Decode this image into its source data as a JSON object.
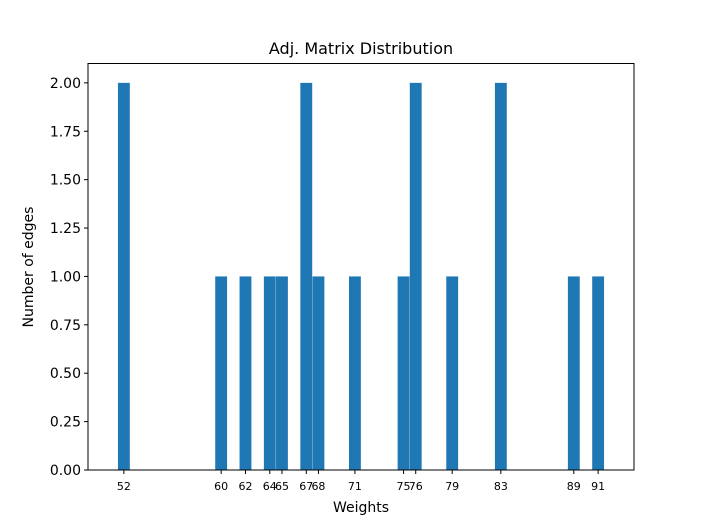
{
  "chart_data": {
    "type": "bar",
    "title": "Adj. Matrix Distribution",
    "xlabel": "Weights",
    "ylabel": "Number of edges",
    "xlim": [
      49.05,
      93.95
    ],
    "ylim": [
      0.0,
      2.1
    ],
    "bar_width": 0.975,
    "color": "#1f77b4",
    "bars": [
      {
        "x": 52,
        "count": 2
      },
      {
        "x": 60,
        "count": 1
      },
      {
        "x": 62,
        "count": 1
      },
      {
        "x": 64,
        "count": 1
      },
      {
        "x": 65,
        "count": 1
      },
      {
        "x": 67,
        "count": 2
      },
      {
        "x": 68,
        "count": 1
      },
      {
        "x": 71,
        "count": 1
      },
      {
        "x": 75,
        "count": 1
      },
      {
        "x": 76,
        "count": 2
      },
      {
        "x": 79,
        "count": 1
      },
      {
        "x": 83,
        "count": 2
      },
      {
        "x": 89,
        "count": 1
      },
      {
        "x": 91,
        "count": 1
      }
    ],
    "xticks": [
      52,
      60,
      62,
      64,
      65,
      67,
      68,
      71,
      75,
      76,
      79,
      83,
      89,
      91
    ],
    "xtick_labels": [
      "52",
      "60",
      "62",
      "64",
      "65",
      "67",
      "68",
      "71",
      "75",
      "76",
      "79",
      "83",
      "89",
      "91"
    ],
    "yticks": [
      0.0,
      0.25,
      0.5,
      0.75,
      1.0,
      1.25,
      1.5,
      1.75,
      2.0
    ],
    "ytick_labels": [
      "0.00",
      "0.25",
      "0.50",
      "0.75",
      "1.00",
      "1.25",
      "1.50",
      "1.75",
      "2.00"
    ],
    "grid": false,
    "legend": "none"
  }
}
